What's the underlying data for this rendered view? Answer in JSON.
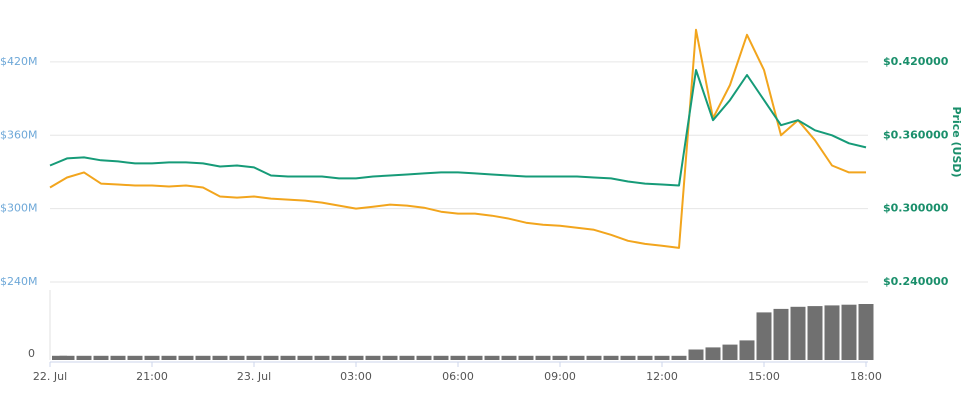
{
  "chart_data": [
    {
      "type": "line",
      "x": [
        0,
        0.5,
        1,
        1.5,
        2,
        2.5,
        3,
        3.5,
        4,
        4.5,
        5,
        5.5,
        6,
        6.5,
        7,
        7.5,
        8,
        8.5,
        9,
        9.5,
        10,
        10.5,
        11,
        11.5,
        12,
        12.5,
        13,
        13.5,
        14,
        14.5,
        15,
        15.5,
        16,
        16.5,
        17,
        17.5,
        18,
        18.5,
        19,
        19.5,
        20,
        20.5,
        21,
        21.5,
        22,
        22.5,
        23,
        23.5,
        24
      ],
      "xlim": [
        0,
        24
      ],
      "xticks": [
        {
          "value": 0,
          "label": "22. Jul"
        },
        {
          "value": 3,
          "label": "21:00"
        },
        {
          "value": 6,
          "label": "23. Jul"
        },
        {
          "value": 9,
          "label": "03:00"
        },
        {
          "value": 12,
          "label": "06:00"
        },
        {
          "value": 15,
          "label": "09:00"
        },
        {
          "value": 18,
          "label": "12:00"
        },
        {
          "value": 21,
          "label": "15:00"
        },
        {
          "value": 24,
          "label": "18:00"
        }
      ],
      "ylim": [
        240,
        460
      ],
      "yticks": [
        {
          "value": 240,
          "label": "$240M"
        },
        {
          "value": 300,
          "label": "$300M"
        },
        {
          "value": 360,
          "label": "$360M"
        },
        {
          "value": 420,
          "label": "$420M"
        }
      ],
      "y2lim": [
        0.24,
        0.46
      ],
      "y2ticks": [
        {
          "value": 0.24,
          "label": "$0.240000"
        },
        {
          "value": 0.3,
          "label": "$0.300000"
        },
        {
          "value": 0.36,
          "label": "$0.360000"
        },
        {
          "value": 0.42,
          "label": "$0.420000"
        }
      ],
      "y2label": "Price (USD)",
      "grid": true,
      "series": [
        {
          "color": "#f2a51d",
          "axis": "y",
          "values": [
            317.3,
            325.5,
            329.6,
            320.5,
            319.7,
            318.9,
            318.9,
            318.1,
            318.9,
            317.3,
            309.9,
            309,
            309.9,
            308.2,
            307.4,
            306.6,
            304.9,
            302.5,
            300,
            301.6,
            303.3,
            302.5,
            300.8,
            297.5,
            295.9,
            295.9,
            294.2,
            291.8,
            288.5,
            286.8,
            286,
            284.4,
            282.7,
            278.6,
            273.7,
            271.2,
            269.6,
            267.9,
            446.3,
            374,
            401.1,
            442.2,
            413.4,
            360,
            372.3,
            355.9,
            335.3,
            329.6,
            329.6
          ]
        },
        {
          "color": "#169b78",
          "axis": "y2",
          "values": [
            0.3353,
            0.3411,
            0.3419,
            0.3395,
            0.3386,
            0.337,
            0.337,
            0.3378,
            0.3378,
            0.337,
            0.3345,
            0.3353,
            0.3337,
            0.3271,
            0.3263,
            0.3263,
            0.3263,
            0.3247,
            0.3247,
            0.3263,
            0.3271,
            0.3279,
            0.3288,
            0.3296,
            0.3296,
            0.3288,
            0.3279,
            0.3271,
            0.3263,
            0.3263,
            0.3263,
            0.3263,
            0.3255,
            0.3247,
            0.3222,
            0.3205,
            0.3197,
            0.3189,
            0.4134,
            0.3723,
            0.3888,
            0.4093,
            0.3888,
            0.3682,
            0.3723,
            0.3641,
            0.36,
            0.3534,
            0.3501
          ]
        }
      ]
    },
    {
      "type": "bar",
      "x": [
        0,
        0.5,
        1,
        1.5,
        2,
        2.5,
        3,
        3.5,
        4,
        4.5,
        5,
        5.5,
        6,
        6.5,
        7,
        7.5,
        8,
        8.5,
        9,
        9.5,
        10,
        10.5,
        11,
        11.5,
        12,
        12.5,
        13,
        13.5,
        14,
        14.5,
        15,
        15.5,
        16,
        16.5,
        17,
        17.5,
        18,
        18.5,
        19,
        19.5,
        20,
        20.5,
        21,
        21.5,
        22,
        22.5,
        23,
        23.5,
        24
      ],
      "xlim": [
        0,
        24
      ],
      "ylim": [
        0,
        100
      ],
      "yticks": [
        0
      ],
      "color": "#707070",
      "values": [
        6,
        6,
        6,
        6,
        6,
        6,
        6,
        6,
        6,
        6,
        6,
        6,
        6,
        6,
        6,
        6,
        6,
        6,
        6,
        6,
        6,
        6,
        6,
        6,
        6,
        6,
        6,
        6,
        6,
        6,
        6,
        6,
        6,
        6,
        6,
        6,
        6,
        6,
        15,
        18,
        22,
        28,
        68,
        73,
        76,
        77,
        78,
        79,
        80
      ]
    }
  ]
}
